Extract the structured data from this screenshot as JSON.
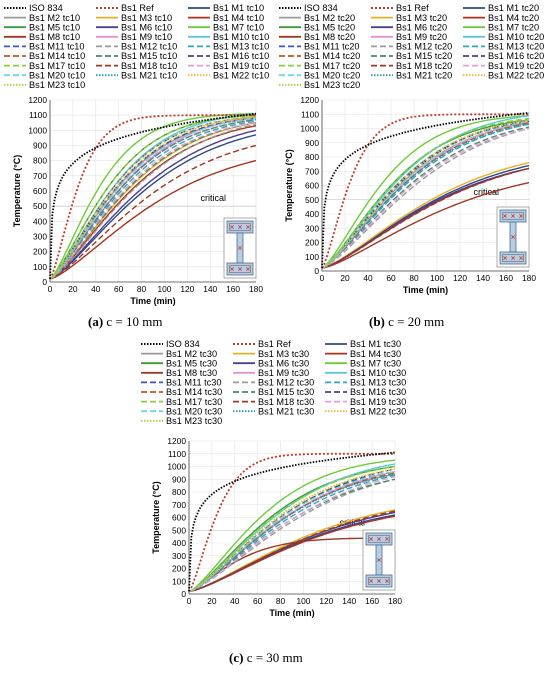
{
  "chart_data": [
    {
      "type": "line",
      "xlabel": "Time (min)",
      "ylabel": "Temperature (°C)",
      "xlim": [
        0,
        180
      ],
      "ylim": [
        0,
        1200
      ],
      "xticks": [
        0,
        20,
        40,
        60,
        80,
        100,
        120,
        140,
        160,
        180
      ],
      "yticks": [
        0,
        100,
        200,
        300,
        400,
        500,
        600,
        700,
        800,
        900,
        1000,
        1100,
        1200
      ],
      "annotation": "critical",
      "critical_value": 500,
      "legend": [
        "ISO 834",
        "Bs1 Ref",
        "Bs1 M1 tc10",
        "Bs1 M2 tc10",
        "Bs1 M3 tc10",
        "Bs1 M4 tc10",
        "Bs1 M5 tc10",
        "Bs1 M6 tc10",
        "Bs1 M7 tc10",
        "Bs1 M8 tc10",
        "Bs1 M9 tc10",
        "Bs1 M10 tc10",
        "Bs1 M11 tc10",
        "Bs1 M12 tc10",
        "Bs1 M13 tc10",
        "Bs1 M14 tc10",
        "Bs1 M15 tc10",
        "Bs1 M16 tc10",
        "Bs1 M17 tc10",
        "Bs1 M18 tc10",
        "Bs1 M19 tc10",
        "Bs1 M20 tc10",
        "Bs1 M21 tc10",
        "Bs1 M22 tc10",
        "Bs1 M23 tc10"
      ],
      "series_end_values": [
        1110,
        1100,
        970,
        1080,
        1050,
        1030,
        1100,
        1000,
        1110,
        800,
        1090,
        1110,
        1090,
        1040,
        1060,
        1070,
        1050,
        1080,
        1100,
        900,
        1050,
        1080,
        1070,
        1090,
        1090
      ],
      "series_t500_values": [
        12,
        18,
        70,
        45,
        55,
        58,
        38,
        66,
        32,
        95,
        48,
        42,
        42,
        60,
        50,
        48,
        54,
        44,
        38,
        80,
        52,
        46,
        48,
        44,
        42
      ],
      "caption_label": "(a)",
      "caption_text": " c = 10 mm"
    },
    {
      "type": "line",
      "xlabel": "Time (min)",
      "ylabel": "Temperature (°C)",
      "xlim": [
        0,
        180
      ],
      "ylim": [
        0,
        1200
      ],
      "xticks": [
        0,
        20,
        40,
        60,
        80,
        100,
        120,
        140,
        160,
        180
      ],
      "yticks": [
        0,
        100,
        200,
        300,
        400,
        500,
        600,
        700,
        800,
        900,
        1000,
        1100,
        1200
      ],
      "annotation": "critical",
      "critical_value": 500,
      "legend": [
        "ISO 834",
        "Bs1 Ref",
        "Bs1 M1 tc20",
        "Bs1 M2 tc20",
        "Bs1 M3 tc20",
        "Bs1 M4 tc20",
        "Bs1 M5 tc20",
        "Bs1 M6 tc20",
        "Bs1 M7 tc20",
        "Bs1 M8 tc20",
        "Bs1 M9 tc20",
        "Bs1 M10 tc20",
        "Bs1 M11 tc20",
        "Bs1 M12 tc20",
        "Bs1 M13 tc20",
        "Bs1 M14 tc20",
        "Bs1 M15 tc20",
        "Bs1 M16 tc20",
        "Bs1 M17 tc20",
        "Bs1 M18 tc20",
        "Bs1 M19 tc20",
        "Bs1 M20 tc20",
        "Bs1 M21 tc20",
        "Bs1 M22 tc20",
        "Bs1 M23 tc20"
      ],
      "series_end_values": [
        1110,
        1100,
        740,
        1040,
        760,
        720,
        1060,
        720,
        1090,
        620,
        1050,
        1090,
        1050,
        1000,
        1030,
        1040,
        1010,
        1060,
        1070,
        720,
        1000,
        1050,
        1030,
        1060,
        1060
      ],
      "series_t500_values": [
        12,
        18,
        110,
        55,
        105,
        118,
        48,
        112,
        40,
        150,
        58,
        50,
        52,
        70,
        60,
        58,
        64,
        54,
        48,
        120,
        66,
        56,
        58,
        54,
        52
      ],
      "caption_label": "(b)",
      "caption_text": " c = 20 mm"
    },
    {
      "type": "line",
      "xlabel": "Time (min)",
      "ylabel": "Temperature (°C)",
      "xlim": [
        0,
        180
      ],
      "ylim": [
        0,
        1200
      ],
      "xticks": [
        0,
        20,
        40,
        60,
        80,
        100,
        120,
        140,
        160,
        180
      ],
      "yticks": [
        0,
        100,
        200,
        300,
        400,
        500,
        600,
        700,
        800,
        900,
        1000,
        1100,
        1200
      ],
      "annotation": "critical",
      "critical_value": 500,
      "legend": [
        "ISO 834",
        "Bs1 Ref",
        "Bs1 M1 tc30",
        "Bs1 M2 tc30",
        "Bs1 M3 tc30",
        "Bs1 M4 tc30",
        "Bs1 M5 tc30",
        "Bs1 M6 tc30",
        "Bs1 M7 tc30",
        "Bs1 M8 tc30",
        "Bs1 M9 tc30",
        "Bs1 M10 tc30",
        "Bs1 M11 tc30",
        "Bs1 M12 tc30",
        "Bs1 M13 tc30",
        "Bs1 M14 tc30",
        "Bs1 M15 tc30",
        "Bs1 M16 tc30",
        "Bs1 M17 tc30",
        "Bs1 M18 tc30",
        "Bs1 M19 tc30",
        "Bs1 M20 tc30",
        "Bs1 M21 tc30",
        "Bs1 M22 tc30",
        "Bs1 M23 tc30"
      ],
      "series_end_values": [
        1110,
        1100,
        620,
        940,
        660,
        610,
        1000,
        640,
        1050,
        440,
        960,
        1020,
        960,
        900,
        930,
        950,
        900,
        980,
        1000,
        650,
        920,
        960,
        940,
        980,
        980
      ],
      "series_t500_values": [
        12,
        18,
        145,
        70,
        132,
        150,
        58,
        140,
        50,
        200,
        72,
        62,
        66,
        86,
        76,
        72,
        80,
        68,
        60,
        140,
        82,
        68,
        72,
        66,
        64
      ],
      "caption_label": "(c)",
      "caption_text": " c = 30 mm"
    }
  ],
  "colors": {
    "iso": "#000000",
    "ref": "#c0392b",
    "beam_fill": "#b7cde3",
    "beam_stroke": "#4a6f96",
    "beam_mark": "#d0302a",
    "series": [
      "#000000",
      "#c0392b",
      "#2e4a8a",
      "#9a9a9a",
      "#e8b020",
      "#b03020",
      "#3a9a3a",
      "#4b3e8f",
      "#6ccc3a",
      "#a03822",
      "#e98fd6",
      "#5ac8d8",
      "#3a56c8",
      "#9a9a9a",
      "#2aa8c0",
      "#c05520",
      "#4b8a6a",
      "#4b3e8f",
      "#8ccc3a",
      "#a03822",
      "#e0a0d8",
      "#6ad8e8",
      "#2a9ab8",
      "#f0b830",
      "#b0d040"
    ],
    "dash": [
      "1.5,1.5",
      "2,2",
      "",
      "",
      "",
      "",
      "",
      "",
      "",
      "",
      "",
      "",
      "6,3",
      "6,3",
      "6,3",
      "6,3",
      "6,3",
      "6,3",
      "6,3",
      "6,3",
      "6,3",
      "6,3",
      "1.5,1.5",
      "1.5,1.5",
      "1.5,1.5"
    ]
  }
}
